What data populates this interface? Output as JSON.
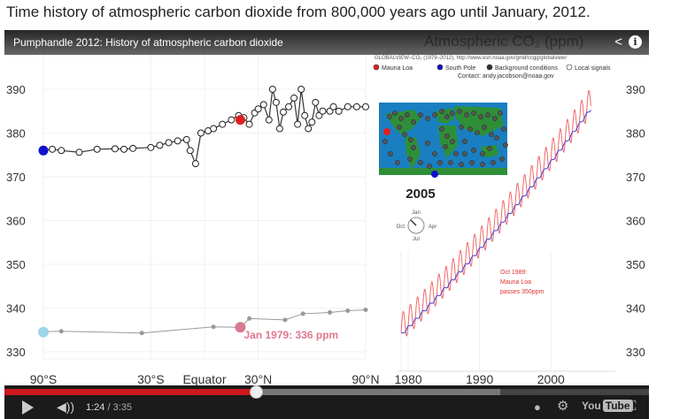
{
  "page": {
    "heading": "Time history of atmospheric carbon dioxide from 800,000 years ago until January, 2012."
  },
  "video": {
    "title": "Pumphandle 2012: History of atmospheric carbon dioxide",
    "share_icon": "share-icon",
    "info_icon": "info-icon",
    "info_label": "i"
  },
  "controls": {
    "current_time": "1:24",
    "duration": " / 3:35",
    "progress_fraction": 0.39,
    "logo_text": "You",
    "logo_tube": "Tube",
    "icons": [
      "play-icon",
      "volume-icon",
      "annotations-icon",
      "settings-icon",
      "fullscreen-icon"
    ]
  },
  "chart_data": {
    "type": "scatter",
    "title": "Atmospheric CO₂ (ppm)",
    "legend": {
      "source": "GLOBALVIEW–CO₂ (1979–2012), http://www.esrl.noaa.gov/gmd/ccgg/globalview/",
      "items": [
        "Mauna Loa",
        "South Pole",
        "Background conditions",
        "Local signals"
      ],
      "contact": "Contact: andy.jacobson@noaa.gov",
      "colors": {
        "mauna_loa": "#e02020",
        "south_pole": "#1010d0",
        "background": "#333333",
        "local": "#ffffff"
      }
    },
    "y_ticks": [
      330,
      340,
      350,
      360,
      370,
      380,
      390
    ],
    "ylim": [
      327,
      400
    ],
    "latitude_panel": {
      "x_ticks": [
        "90°S",
        "30°S",
        "Equator",
        "30°N",
        "90°N"
      ],
      "current_2005": [
        [
          -90,
          376
        ],
        [
          -85,
          376.3
        ],
        [
          -80,
          376
        ],
        [
          -70,
          375.6
        ],
        [
          -60,
          376.3
        ],
        [
          -50,
          376.4
        ],
        [
          -45,
          376.3
        ],
        [
          -40,
          376.5
        ],
        [
          -30,
          376.7
        ],
        [
          -25,
          377.2
        ],
        [
          -20,
          377.8
        ],
        [
          -15,
          378.2
        ],
        [
          -10,
          378.5
        ],
        [
          -8,
          376
        ],
        [
          -5,
          373
        ],
        [
          -2,
          380
        ],
        [
          2,
          380.5
        ],
        [
          5,
          381
        ],
        [
          10,
          382
        ],
        [
          15,
          383
        ],
        [
          19,
          384
        ],
        [
          22,
          383.5
        ],
        [
          25,
          382
        ],
        [
          28,
          384.6
        ],
        [
          30,
          385.5
        ],
        [
          33,
          386.5
        ],
        [
          36,
          383
        ],
        [
          38,
          390
        ],
        [
          40,
          387
        ],
        [
          42,
          381
        ],
        [
          44,
          384.8
        ],
        [
          47,
          386
        ],
        [
          50,
          388
        ],
        [
          52,
          382
        ],
        [
          54,
          390
        ],
        [
          56,
          384
        ],
        [
          58,
          381
        ],
        [
          60,
          382.5
        ],
        [
          62,
          387
        ],
        [
          64,
          384
        ],
        [
          66,
          385
        ],
        [
          70,
          385
        ],
        [
          72,
          386
        ],
        [
          75,
          385
        ],
        [
          80,
          386
        ],
        [
          85,
          386
        ],
        [
          90,
          386
        ]
      ],
      "mauna_loa_2005": [
        20,
        383
      ],
      "south_pole_2005": [
        -90,
        376
      ],
      "history_1979": [
        [
          -90,
          334.6
        ],
        [
          -80,
          334.7
        ],
        [
          -35,
          334.3
        ],
        [
          5,
          335.7
        ],
        [
          20,
          335.6
        ],
        [
          25,
          337.6
        ],
        [
          45,
          337.3
        ],
        [
          55,
          338.7
        ],
        [
          70,
          339
        ],
        [
          80,
          339.4
        ],
        [
          90,
          339.6
        ]
      ],
      "south_pole_1979": [
        -90,
        334.5
      ],
      "mauna_loa_1979": [
        20,
        335.6
      ],
      "annotation": "Jan 1979: 336 ppm"
    },
    "time_panel": {
      "x_ticks": [
        "1980",
        "1990",
        "2000"
      ],
      "xlim": [
        1978.5,
        2012
      ],
      "mauna_loa_start": 335.5,
      "annual_growth": 1.65,
      "seasonal_amplitude": 3.2,
      "annotation_lines": [
        "Oct 1989:",
        "Mauna Loa",
        "passes 350ppm"
      ]
    },
    "map": {
      "year": "2005",
      "months": [
        "Jan",
        "Apr",
        "Jul",
        "Oct"
      ]
    }
  }
}
